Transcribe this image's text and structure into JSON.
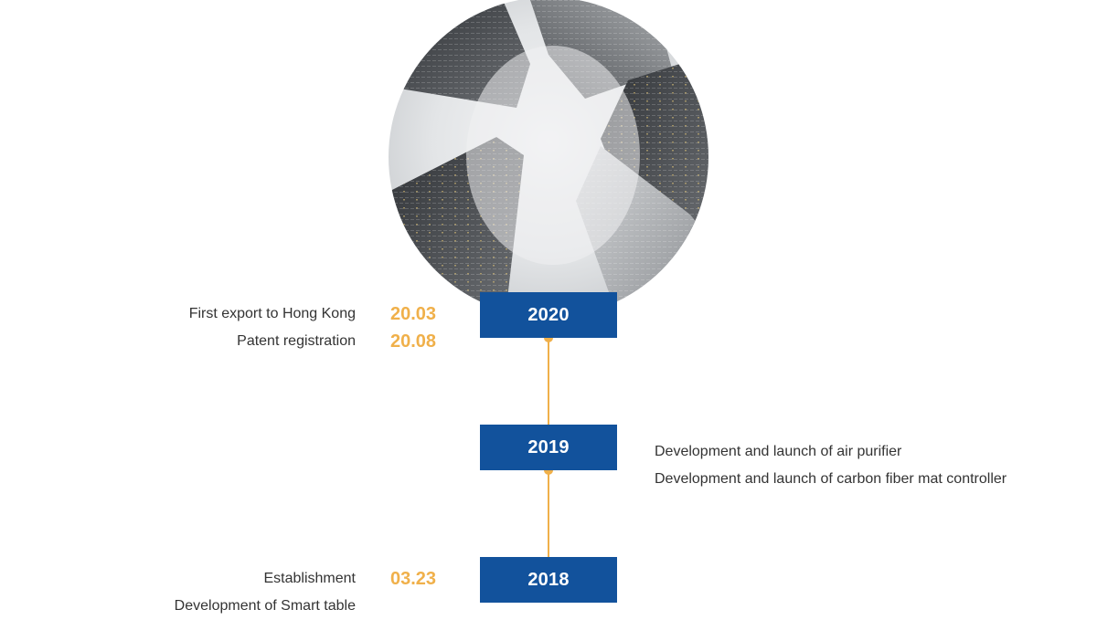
{
  "timeline": [
    {
      "year": "2020",
      "side": "left",
      "events": [
        {
          "text": "First export to Hong Kong",
          "date": "20.03"
        },
        {
          "text": "Patent registration",
          "date": "20.08"
        }
      ]
    },
    {
      "year": "2019",
      "side": "right",
      "events": [
        {
          "text": "Development and launch of air purifier",
          "date": ""
        },
        {
          "text": "Development and launch of carbon fiber mat controller",
          "date": ""
        }
      ]
    },
    {
      "year": "2018",
      "side": "left",
      "events": [
        {
          "text": "Establishment",
          "date": "03.23"
        },
        {
          "text": "Development of Smart table",
          "date": ""
        }
      ]
    }
  ],
  "colors": {
    "year_box": "#12529c",
    "accent": "#f0b04a",
    "text": "#333333"
  }
}
